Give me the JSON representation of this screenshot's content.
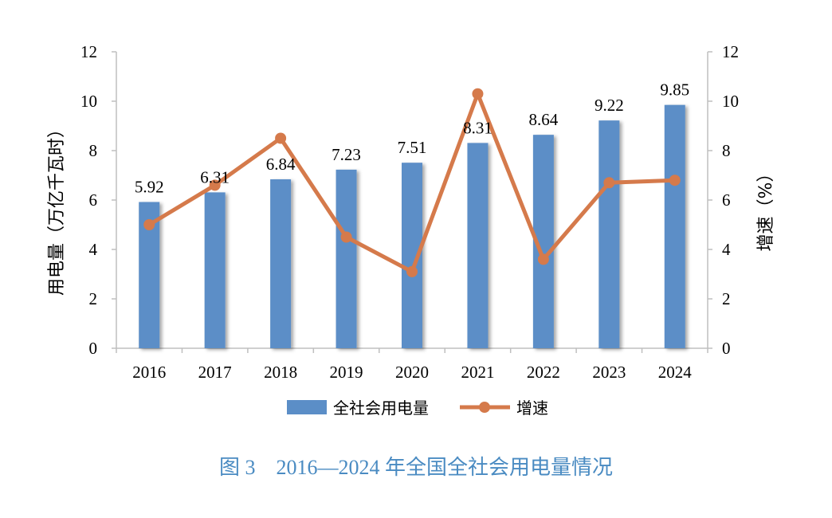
{
  "chart_data": {
    "type": "bar",
    "categories": [
      "2016",
      "2017",
      "2018",
      "2019",
      "2020",
      "2021",
      "2022",
      "2023",
      "2024"
    ],
    "series": [
      {
        "name": "全社会用电量",
        "type": "bar",
        "axis": "left",
        "values": [
          5.92,
          6.31,
          6.84,
          7.23,
          7.51,
          8.31,
          8.64,
          9.22,
          9.85
        ]
      },
      {
        "name": "增速",
        "type": "line",
        "axis": "right",
        "values": [
          5.0,
          6.6,
          8.5,
          4.5,
          3.1,
          10.3,
          3.6,
          6.7,
          6.8
        ]
      }
    ],
    "data_labels": [
      "5.92",
      "6.31",
      "6.84",
      "7.23",
      "7.51",
      "8.31",
      "8.64",
      "9.22",
      "9.85"
    ],
    "ylabel": "用电量（万亿千瓦时）",
    "y2label": "增速（%）",
    "ylim": [
      0,
      12
    ],
    "y2lim": [
      0,
      12
    ],
    "yticks": [
      "0",
      "2",
      "4",
      "6",
      "8",
      "10",
      "12"
    ],
    "y2ticks": [
      "0",
      "2",
      "4",
      "6",
      "8",
      "10",
      "12"
    ],
    "legend_position": "bottom",
    "grid": false,
    "colors": {
      "bar": "#5b8ec7",
      "line": "#d57a4b"
    }
  },
  "caption": "图 3　2016—2024 年全国全社会用电量情况"
}
